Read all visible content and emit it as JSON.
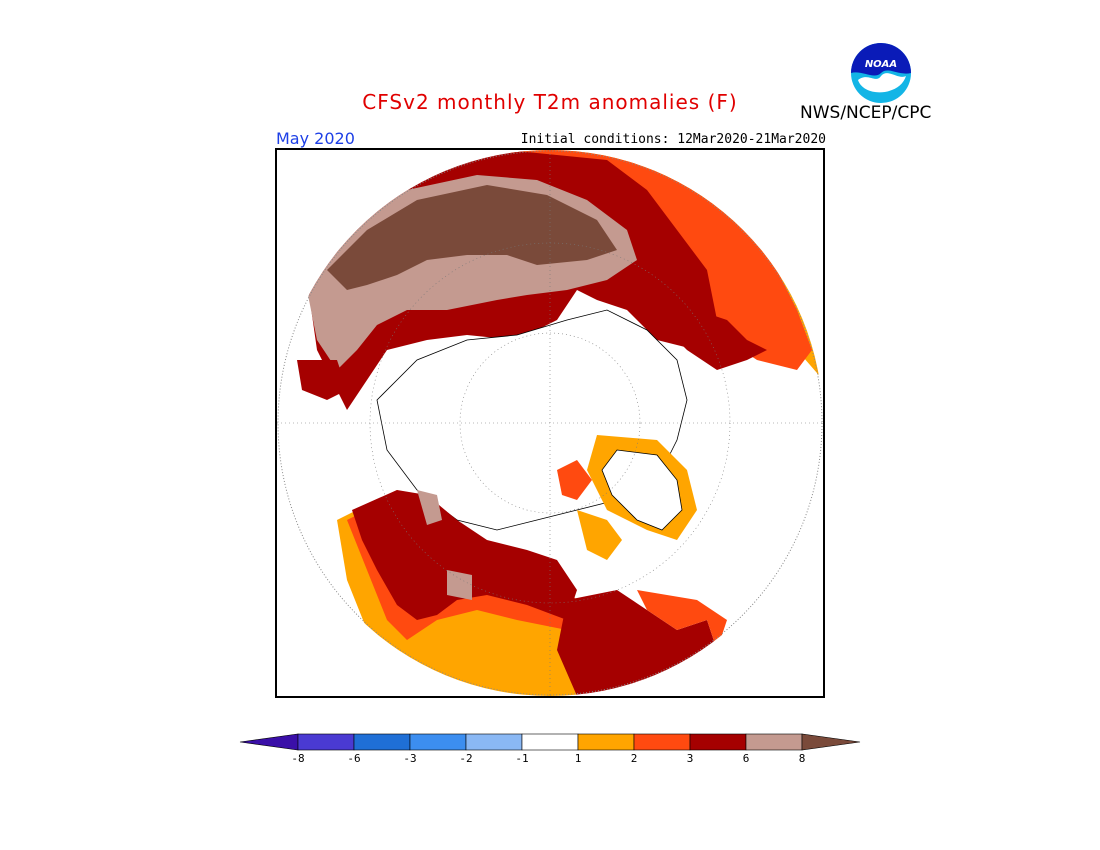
{
  "title": "CFSv2 monthly T2m anomalies (F)",
  "agency": "NWS/NCEP/CPC",
  "logo_text": "NOAA",
  "month": "May 2020",
  "initial_conditions": "Initial conditions: 12Mar2020-21Mar2020",
  "colorbar": {
    "colors": [
      "#3a0fa8",
      "#4a3ad2",
      "#1f6fd6",
      "#3c8ef0",
      "#8ab8f4",
      "#ffffff",
      "#ffa500",
      "#ff4a10",
      "#a50000",
      "#c49a90",
      "#7a4a3a"
    ],
    "labels": [
      "-8",
      "-6",
      "-3",
      "-2",
      "-1",
      "1",
      "2",
      "3",
      "6",
      "8"
    ]
  },
  "colors": {
    "title": "#e00000",
    "month": "#1d3fe6",
    "map_ocean": "#ffffff",
    "coast": "#000000"
  }
}
